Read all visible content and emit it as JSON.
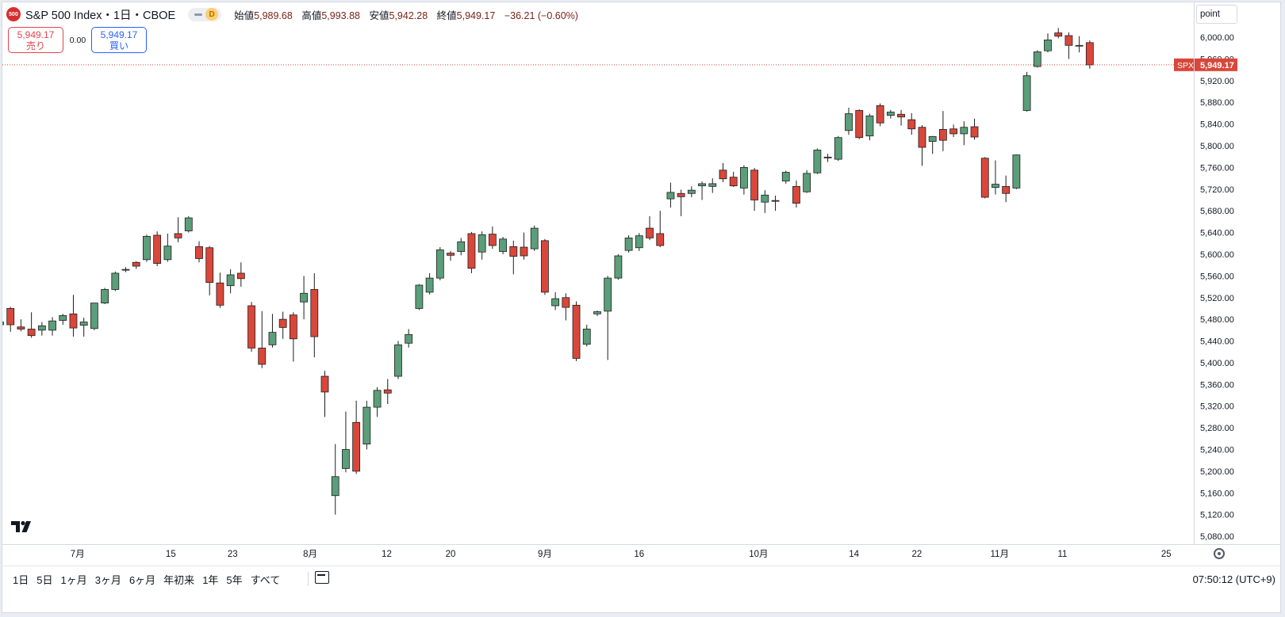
{
  "header": {
    "logo_text": "500",
    "title": "S&P 500 Index・1日・CBOE",
    "interval_badge": "D",
    "open_label": "始値",
    "open": "5,989.68",
    "high_label": "高値",
    "high": "5,993.88",
    "low_label": "安値",
    "low": "5,942.28",
    "close_label": "終値",
    "close": "5,949.17",
    "change": "−36.21 (−0.60%)"
  },
  "quote": {
    "sell_price": "5,949.17",
    "sell_label": "売り",
    "spread": "0.00",
    "buy_price": "5,949.17",
    "buy_label": "買い"
  },
  "unit_button": "point",
  "price_tag": {
    "symbol": "SPX",
    "value": "5,949.17"
  },
  "range_buttons": [
    "1日",
    "5日",
    "1ヶ月",
    "3ヶ月",
    "6ヶ月",
    "年初来",
    "1年",
    "5年",
    "すべて"
  ],
  "clock": "07:50:12 (UTC+9)",
  "colors": {
    "up": "#5b9e7a",
    "down": "#d9473a",
    "last_price": "#d9473a"
  },
  "icons": [
    "calendar-range-icon",
    "gear-icon",
    "tradingview-logo-icon"
  ],
  "chart_data": {
    "type": "candlestick",
    "symbol": "SPX",
    "ylim": [
      5080,
      6000
    ],
    "y_ticks": [
      5080,
      5120,
      5160,
      5200,
      5240,
      5280,
      5320,
      5360,
      5400,
      5440,
      5480,
      5520,
      5560,
      5600,
      5640,
      5680,
      5720,
      5760,
      5800,
      5840,
      5880,
      5920,
      5960,
      6000
    ],
    "y_tick_labels": [
      "5,080.00",
      "5,120.00",
      "5,160.00",
      "5,200.00",
      "5,240.00",
      "5,280.00",
      "5,320.00",
      "5,360.00",
      "5,400.00",
      "5,440.00",
      "5,480.00",
      "5,520.00",
      "5,560.00",
      "5,600.00",
      "5,640.00",
      "5,680.00",
      "5,720.00",
      "5,760.00",
      "5,800.00",
      "5,840.00",
      "5,880.00",
      "5,920.00",
      "5,960.00",
      "6,000.00"
    ],
    "x_labels": [
      {
        "index": 7.4,
        "text": "7月"
      },
      {
        "index": 16.3,
        "text": "15"
      },
      {
        "index": 22.2,
        "text": "23"
      },
      {
        "index": 29.6,
        "text": "8月"
      },
      {
        "index": 36.9,
        "text": "12"
      },
      {
        "index": 43.0,
        "text": "20"
      },
      {
        "index": 52.0,
        "text": "9月"
      },
      {
        "index": 61.0,
        "text": "16"
      },
      {
        "index": 72.4,
        "text": "10月"
      },
      {
        "index": 81.5,
        "text": "14"
      },
      {
        "index": 87.5,
        "text": "22"
      },
      {
        "index": 95.4,
        "text": "11月"
      },
      {
        "index": 101.4,
        "text": "11"
      },
      {
        "index": 111.3,
        "text": "25"
      }
    ],
    "last_price": 5949.17,
    "candles": [
      {
        "o": 5470,
        "h": 5480,
        "l": 5463,
        "c": 5475
      },
      {
        "o": 5500,
        "h": 5503,
        "l": 5457,
        "c": 5470
      },
      {
        "o": 5466,
        "h": 5480,
        "l": 5458,
        "c": 5462
      },
      {
        "o": 5462,
        "h": 5493,
        "l": 5446,
        "c": 5450
      },
      {
        "o": 5460,
        "h": 5475,
        "l": 5450,
        "c": 5468
      },
      {
        "o": 5460,
        "h": 5484,
        "l": 5450,
        "c": 5477
      },
      {
        "o": 5478,
        "h": 5490,
        "l": 5470,
        "c": 5487
      },
      {
        "o": 5490,
        "h": 5525,
        "l": 5448,
        "c": 5464
      },
      {
        "o": 5469,
        "h": 5483,
        "l": 5448,
        "c": 5475
      },
      {
        "o": 5463,
        "h": 5510,
        "l": 5460,
        "c": 5510
      },
      {
        "o": 5510,
        "h": 5538,
        "l": 5508,
        "c": 5535
      },
      {
        "o": 5535,
        "h": 5568,
        "l": 5532,
        "c": 5565
      },
      {
        "o": 5572,
        "h": 5576,
        "l": 5567,
        "c": 5572
      },
      {
        "o": 5585,
        "h": 5587,
        "l": 5573,
        "c": 5578
      },
      {
        "o": 5590,
        "h": 5636,
        "l": 5586,
        "c": 5633
      },
      {
        "o": 5635,
        "h": 5642,
        "l": 5578,
        "c": 5583
      },
      {
        "o": 5590,
        "h": 5638,
        "l": 5586,
        "c": 5615
      },
      {
        "o": 5638,
        "h": 5668,
        "l": 5622,
        "c": 5630
      },
      {
        "o": 5643,
        "h": 5670,
        "l": 5640,
        "c": 5667
      },
      {
        "o": 5614,
        "h": 5624,
        "l": 5585,
        "c": 5592
      },
      {
        "o": 5612,
        "h": 5615,
        "l": 5524,
        "c": 5548
      },
      {
        "o": 5547,
        "h": 5566,
        "l": 5501,
        "c": 5506
      },
      {
        "o": 5542,
        "h": 5572,
        "l": 5528,
        "c": 5562
      },
      {
        "o": 5565,
        "h": 5585,
        "l": 5540,
        "c": 5555
      },
      {
        "o": 5505,
        "h": 5512,
        "l": 5420,
        "c": 5427
      },
      {
        "o": 5427,
        "h": 5495,
        "l": 5390,
        "c": 5397
      },
      {
        "o": 5433,
        "h": 5490,
        "l": 5428,
        "c": 5456
      },
      {
        "o": 5480,
        "h": 5494,
        "l": 5444,
        "c": 5465
      },
      {
        "o": 5488,
        "h": 5493,
        "l": 5402,
        "c": 5444
      },
      {
        "o": 5512,
        "h": 5560,
        "l": 5480,
        "c": 5528
      },
      {
        "o": 5535,
        "h": 5565,
        "l": 5410,
        "c": 5448
      },
      {
        "o": 5375,
        "h": 5385,
        "l": 5300,
        "c": 5346
      },
      {
        "o": 5155,
        "h": 5250,
        "l": 5120,
        "c": 5190
      },
      {
        "o": 5205,
        "h": 5310,
        "l": 5198,
        "c": 5240
      },
      {
        "o": 5290,
        "h": 5330,
        "l": 5195,
        "c": 5200
      },
      {
        "o": 5250,
        "h": 5330,
        "l": 5240,
        "c": 5318
      },
      {
        "o": 5318,
        "h": 5355,
        "l": 5300,
        "c": 5349
      },
      {
        "o": 5350,
        "h": 5370,
        "l": 5324,
        "c": 5344
      },
      {
        "o": 5375,
        "h": 5440,
        "l": 5370,
        "c": 5433
      },
      {
        "o": 5436,
        "h": 5462,
        "l": 5428,
        "c": 5452
      },
      {
        "o": 5500,
        "h": 5545,
        "l": 5497,
        "c": 5543
      },
      {
        "o": 5530,
        "h": 5565,
        "l": 5526,
        "c": 5556
      },
      {
        "o": 5556,
        "h": 5613,
        "l": 5552,
        "c": 5608
      },
      {
        "o": 5602,
        "h": 5606,
        "l": 5588,
        "c": 5598
      },
      {
        "o": 5605,
        "h": 5630,
        "l": 5598,
        "c": 5623
      },
      {
        "o": 5638,
        "h": 5641,
        "l": 5565,
        "c": 5574
      },
      {
        "o": 5604,
        "h": 5642,
        "l": 5590,
        "c": 5636
      },
      {
        "o": 5637,
        "h": 5651,
        "l": 5610,
        "c": 5616
      },
      {
        "o": 5605,
        "h": 5632,
        "l": 5600,
        "c": 5628
      },
      {
        "o": 5614,
        "h": 5625,
        "l": 5563,
        "c": 5596
      },
      {
        "o": 5613,
        "h": 5640,
        "l": 5590,
        "c": 5597
      },
      {
        "o": 5610,
        "h": 5653,
        "l": 5606,
        "c": 5648
      },
      {
        "o": 5625,
        "h": 5628,
        "l": 5525,
        "c": 5530
      },
      {
        "o": 5505,
        "h": 5530,
        "l": 5497,
        "c": 5518
      },
      {
        "o": 5520,
        "h": 5528,
        "l": 5478,
        "c": 5502
      },
      {
        "o": 5506,
        "h": 5513,
        "l": 5403,
        "c": 5408
      },
      {
        "o": 5434,
        "h": 5470,
        "l": 5430,
        "c": 5462
      },
      {
        "o": 5490,
        "h": 5496,
        "l": 5486,
        "c": 5494
      },
      {
        "o": 5495,
        "h": 5560,
        "l": 5405,
        "c": 5556
      },
      {
        "o": 5556,
        "h": 5600,
        "l": 5553,
        "c": 5597
      },
      {
        "o": 5607,
        "h": 5635,
        "l": 5603,
        "c": 5630
      },
      {
        "o": 5612,
        "h": 5639,
        "l": 5606,
        "c": 5634
      },
      {
        "o": 5648,
        "h": 5670,
        "l": 5626,
        "c": 5630
      },
      {
        "o": 5638,
        "h": 5680,
        "l": 5613,
        "c": 5616
      },
      {
        "o": 5702,
        "h": 5732,
        "l": 5686,
        "c": 5714
      },
      {
        "o": 5712,
        "h": 5719,
        "l": 5670,
        "c": 5706
      },
      {
        "o": 5712,
        "h": 5725,
        "l": 5705,
        "c": 5718
      },
      {
        "o": 5726,
        "h": 5734,
        "l": 5700,
        "c": 5730
      },
      {
        "o": 5725,
        "h": 5740,
        "l": 5713,
        "c": 5730
      },
      {
        "o": 5755,
        "h": 5768,
        "l": 5733,
        "c": 5739
      },
      {
        "o": 5742,
        "h": 5752,
        "l": 5724,
        "c": 5726
      },
      {
        "o": 5722,
        "h": 5764,
        "l": 5710,
        "c": 5760
      },
      {
        "o": 5755,
        "h": 5759,
        "l": 5680,
        "c": 5700
      },
      {
        "o": 5696,
        "h": 5718,
        "l": 5676,
        "c": 5709
      },
      {
        "o": 5699,
        "h": 5708,
        "l": 5680,
        "c": 5698
      },
      {
        "o": 5735,
        "h": 5754,
        "l": 5730,
        "c": 5751
      },
      {
        "o": 5725,
        "h": 5736,
        "l": 5686,
        "c": 5694
      },
      {
        "o": 5715,
        "h": 5755,
        "l": 5713,
        "c": 5749
      },
      {
        "o": 5750,
        "h": 5795,
        "l": 5748,
        "c": 5792
      },
      {
        "o": 5779,
        "h": 5785,
        "l": 5770,
        "c": 5778
      },
      {
        "o": 5775,
        "h": 5818,
        "l": 5772,
        "c": 5815
      },
      {
        "o": 5828,
        "h": 5870,
        "l": 5820,
        "c": 5859
      },
      {
        "o": 5865,
        "h": 5867,
        "l": 5812,
        "c": 5815
      },
      {
        "o": 5818,
        "h": 5859,
        "l": 5810,
        "c": 5855
      },
      {
        "o": 5874,
        "h": 5878,
        "l": 5836,
        "c": 5842
      },
      {
        "o": 5856,
        "h": 5866,
        "l": 5850,
        "c": 5862
      },
      {
        "o": 5858,
        "h": 5866,
        "l": 5837,
        "c": 5853
      },
      {
        "o": 5848,
        "h": 5860,
        "l": 5820,
        "c": 5831
      },
      {
        "o": 5834,
        "h": 5838,
        "l": 5763,
        "c": 5797
      },
      {
        "o": 5808,
        "h": 5818,
        "l": 5785,
        "c": 5817
      },
      {
        "o": 5830,
        "h": 5864,
        "l": 5790,
        "c": 5810
      },
      {
        "o": 5831,
        "h": 5839,
        "l": 5816,
        "c": 5822
      },
      {
        "o": 5822,
        "h": 5845,
        "l": 5801,
        "c": 5834
      },
      {
        "o": 5835,
        "h": 5850,
        "l": 5811,
        "c": 5816
      },
      {
        "o": 5777,
        "h": 5779,
        "l": 5703,
        "c": 5705
      },
      {
        "o": 5723,
        "h": 5773,
        "l": 5710,
        "c": 5729
      },
      {
        "o": 5725,
        "h": 5745,
        "l": 5696,
        "c": 5712
      },
      {
        "o": 5722,
        "h": 5784,
        "l": 5720,
        "c": 5783
      },
      {
        "o": 5865,
        "h": 5936,
        "l": 5863,
        "c": 5929
      },
      {
        "o": 5946,
        "h": 5976,
        "l": 5944,
        "c": 5973
      },
      {
        "o": 5975,
        "h": 6007,
        "l": 5972,
        "c": 5995
      },
      {
        "o": 6008,
        "h": 6017,
        "l": 5998,
        "c": 6002
      },
      {
        "o": 6003,
        "h": 6009,
        "l": 5960,
        "c": 5985
      },
      {
        "o": 5985,
        "h": 6002,
        "l": 5972,
        "c": 5985
      },
      {
        "o": 5990,
        "h": 5994,
        "l": 5942,
        "c": 5949
      }
    ]
  }
}
